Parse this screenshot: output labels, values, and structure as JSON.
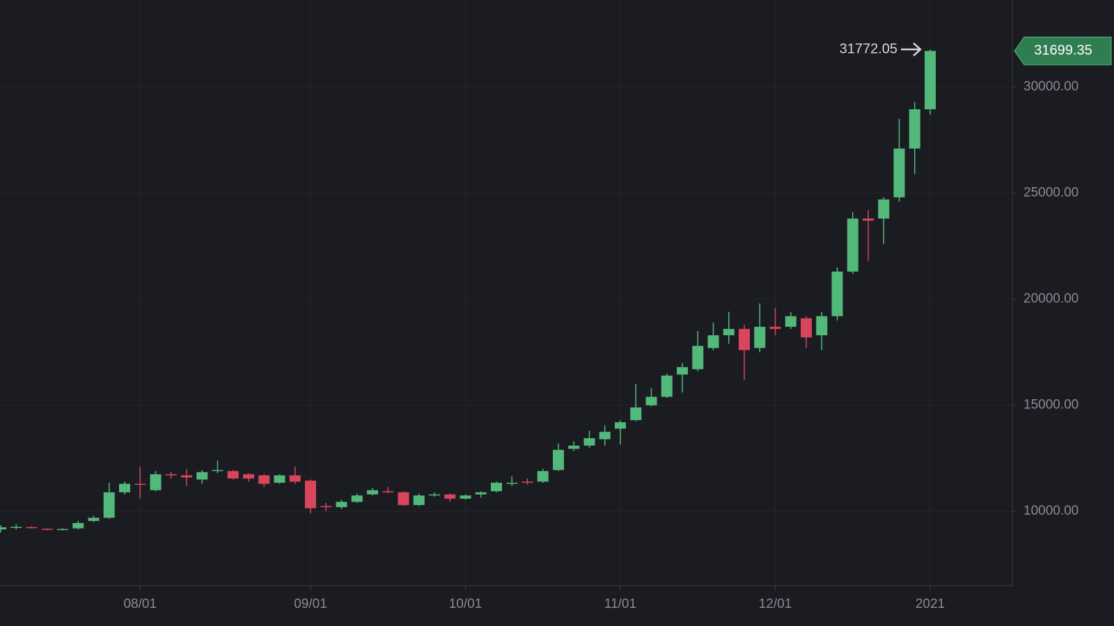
{
  "chart_data": {
    "type": "candlestick",
    "categories": [
      null,
      null,
      null,
      null,
      null,
      null,
      null,
      null,
      null,
      "08/01",
      null,
      null,
      null,
      null,
      null,
      null,
      null,
      null,
      null,
      null,
      "09/01",
      null,
      null,
      null,
      null,
      null,
      null,
      null,
      null,
      null,
      "10/01",
      null,
      null,
      null,
      null,
      null,
      null,
      null,
      null,
      null,
      "11/01",
      null,
      null,
      null,
      null,
      null,
      null,
      null,
      null,
      null,
      "12/01",
      null,
      null,
      null,
      null,
      null,
      null,
      null,
      null,
      null,
      "2021"
    ],
    "open": [
      9150,
      9250,
      9260,
      9180,
      9160,
      9200,
      9550,
      9700,
      10900,
      11300,
      11000,
      11750,
      11700,
      11500,
      11900,
      11900,
      11750,
      11700,
      11350,
      11700,
      11450,
      10250,
      10200,
      10450,
      10800,
      10950,
      10900,
      10300,
      10750,
      10800,
      10600,
      10800,
      10950,
      11300,
      11400,
      11400,
      11950,
      12950,
      13100,
      13400,
      13900,
      14300,
      15000,
      15400,
      16450,
      16700,
      17700,
      18300,
      18600,
      17700,
      18700,
      18700,
      19100,
      18300,
      19200,
      21300,
      23800,
      23800,
      24800,
      27100,
      28950
    ],
    "high": [
      9350,
      9400,
      9300,
      9200,
      9200,
      9550,
      9800,
      11350,
      11400,
      12100,
      11900,
      11850,
      12000,
      11950,
      12400,
      11950,
      11800,
      11750,
      11750,
      12100,
      11500,
      10400,
      10550,
      10850,
      11100,
      11150,
      10950,
      10850,
      10900,
      10850,
      10800,
      10950,
      11400,
      11650,
      11550,
      12000,
      13200,
      13300,
      13800,
      14050,
      14300,
      16000,
      15800,
      16500,
      17000,
      18500,
      18900,
      19400,
      18800,
      19800,
      19600,
      19400,
      19200,
      19400,
      21500,
      24100,
      24200,
      24800,
      28500,
      29300,
      31772.05
    ],
    "low": [
      9000,
      9150,
      9200,
      9100,
      9100,
      9150,
      9500,
      9650,
      10800,
      10600,
      10950,
      11550,
      11200,
      11300,
      11800,
      11500,
      11400,
      11150,
      11300,
      11300,
      9900,
      10000,
      10100,
      10400,
      10750,
      10850,
      10250,
      10250,
      10700,
      10450,
      10550,
      10650,
      10900,
      11200,
      11250,
      11350,
      11900,
      12850,
      13000,
      13100,
      13150,
      14250,
      14950,
      15350,
      15600,
      16600,
      17600,
      17900,
      16200,
      17500,
      18300,
      18600,
      17700,
      17600,
      19000,
      21200,
      21800,
      22600,
      24600,
      25900,
      28700
    ],
    "close": [
      9250,
      9270,
      9220,
      9150,
      9170,
      9450,
      9700,
      10900,
      11300,
      11250,
      11750,
      11700,
      11600,
      11850,
      11950,
      11550,
      11550,
      11300,
      11700,
      11400,
      10150,
      10200,
      10450,
      10750,
      11000,
      10900,
      10300,
      10750,
      10800,
      10600,
      10750,
      10900,
      11350,
      11350,
      11350,
      11900,
      12900,
      13100,
      13450,
      13750,
      14200,
      14900,
      15400,
      16400,
      16800,
      17800,
      18300,
      18600,
      17600,
      18700,
      18600,
      19200,
      18200,
      19200,
      21300,
      23800,
      23700,
      24700,
      27100,
      28950,
      31699.35
    ],
    "up_color": "#52b97a",
    "down_color": "#d9455d",
    "ylim": [
      6500,
      34100
    ],
    "yticks": [
      {
        "value": 10000,
        "label": "10000.00"
      },
      {
        "value": 15000,
        "label": "15000.00"
      },
      {
        "value": 20000,
        "label": "20000.00"
      },
      {
        "value": 25000,
        "label": "25000.00"
      },
      {
        "value": 30000,
        "label": "30000.00"
      }
    ],
    "grid": true
  }
}
